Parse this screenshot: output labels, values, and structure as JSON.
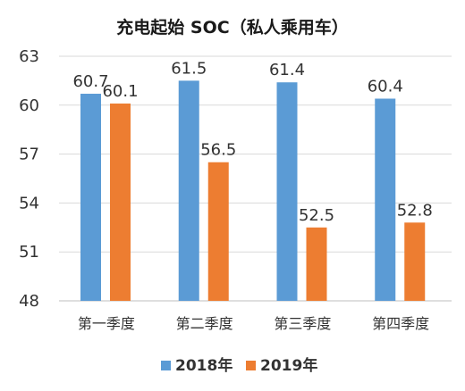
{
  "chart_data": {
    "type": "bar",
    "title": "充电起始 SOC（私人乘用车）",
    "categories": [
      "第一季度",
      "第二季度",
      "第三季度",
      "第四季度"
    ],
    "series": [
      {
        "name": "2018年",
        "values": [
          60.7,
          61.5,
          61.4,
          60.4
        ],
        "color": "#5b9bd5"
      },
      {
        "name": "2019年",
        "values": [
          60.1,
          56.5,
          52.5,
          52.8
        ],
        "color": "#ed7d31"
      }
    ],
    "ylim": [
      48,
      63
    ],
    "yticks": [
      48,
      51,
      54,
      57,
      60,
      63
    ],
    "grid": true,
    "legend": "bottom"
  }
}
